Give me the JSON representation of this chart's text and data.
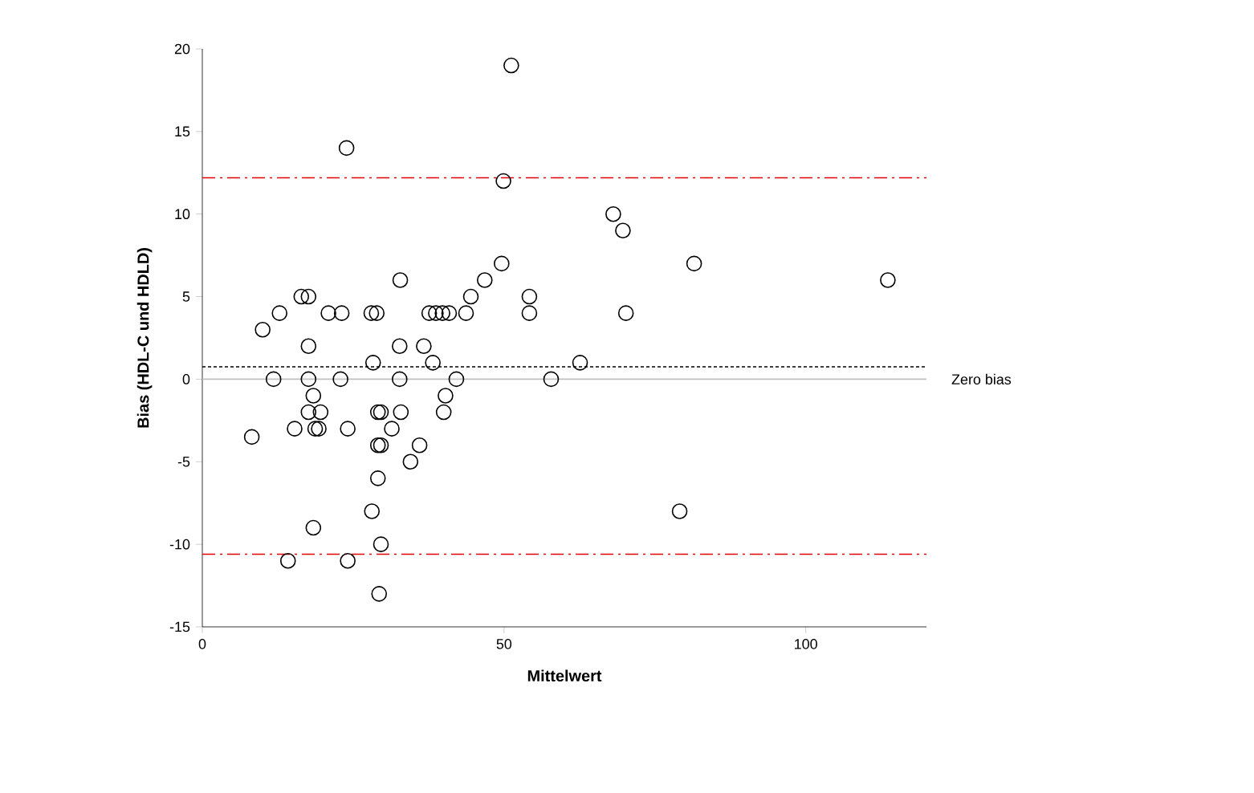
{
  "chart_data": {
    "type": "scatter",
    "xlabel": "Mittelwert",
    "ylabel": "Bias (HDL-C und HDLD)",
    "xlim": [
      0,
      120
    ],
    "xticks": [
      0,
      50,
      100
    ],
    "ylim": [
      -15,
      20
    ],
    "yticks": [
      -15,
      -10,
      -5,
      0,
      5,
      10,
      15,
      20
    ],
    "marker": "circle",
    "grid": false,
    "series": [
      {
        "color": "#000000",
        "x": [
          51.2,
          23.9,
          49.9,
          49.6,
          32.8,
          46.8,
          16.4,
          17.6,
          44.5,
          54.2,
          12.8,
          20.9,
          23.1,
          28.0,
          28.9,
          37.6,
          38.7,
          39.8,
          40.9,
          43.7,
          54.2,
          10.0,
          17.6,
          32.7,
          36.7,
          28.3,
          38.2,
          11.8,
          17.6,
          22.9,
          32.7,
          42.1,
          57.8,
          18.4,
          40.3,
          17.6,
          19.6,
          29.1,
          29.6,
          32.9,
          40.0,
          15.3,
          18.7,
          19.3,
          24.1,
          31.4,
          8.2,
          29.1,
          29.6,
          36.0,
          34.5,
          29.1,
          28.1,
          18.4,
          29.6,
          14.2,
          24.1,
          29.3,
          68.1,
          69.7,
          81.5,
          113.6,
          70.2,
          62.6,
          79.1
        ],
        "values": [
          19,
          14,
          12,
          7,
          6,
          6,
          5,
          5,
          5,
          5,
          4,
          4,
          4,
          4,
          4,
          4,
          4,
          4,
          4,
          4,
          4,
          3,
          2,
          2,
          2,
          1,
          1,
          0,
          0,
          0,
          0,
          0,
          0,
          -1,
          -1,
          -2,
          -2,
          -2,
          -2,
          -2,
          -2,
          -3,
          -3,
          -3,
          -3,
          -3,
          -3.5,
          -4,
          -4,
          -4,
          -5,
          -6,
          -8,
          -9,
          -10,
          -11,
          -11,
          -13,
          10,
          9,
          7,
          6,
          4,
          1,
          -8
        ]
      }
    ],
    "ref_lines": [
      {
        "axis": "y",
        "value": 12.2,
        "color": "#e00000",
        "line_style": "dashdot"
      },
      {
        "axis": "y",
        "value": -10.6,
        "color": "#e00000",
        "line_style": "dashdot"
      },
      {
        "axis": "y",
        "value": 0.75,
        "color": "#000000",
        "line_style": "dotted"
      },
      {
        "axis": "y",
        "value": 0,
        "color": "#c0c0c0",
        "line_style": "solid",
        "label": "Zero bias"
      }
    ]
  }
}
